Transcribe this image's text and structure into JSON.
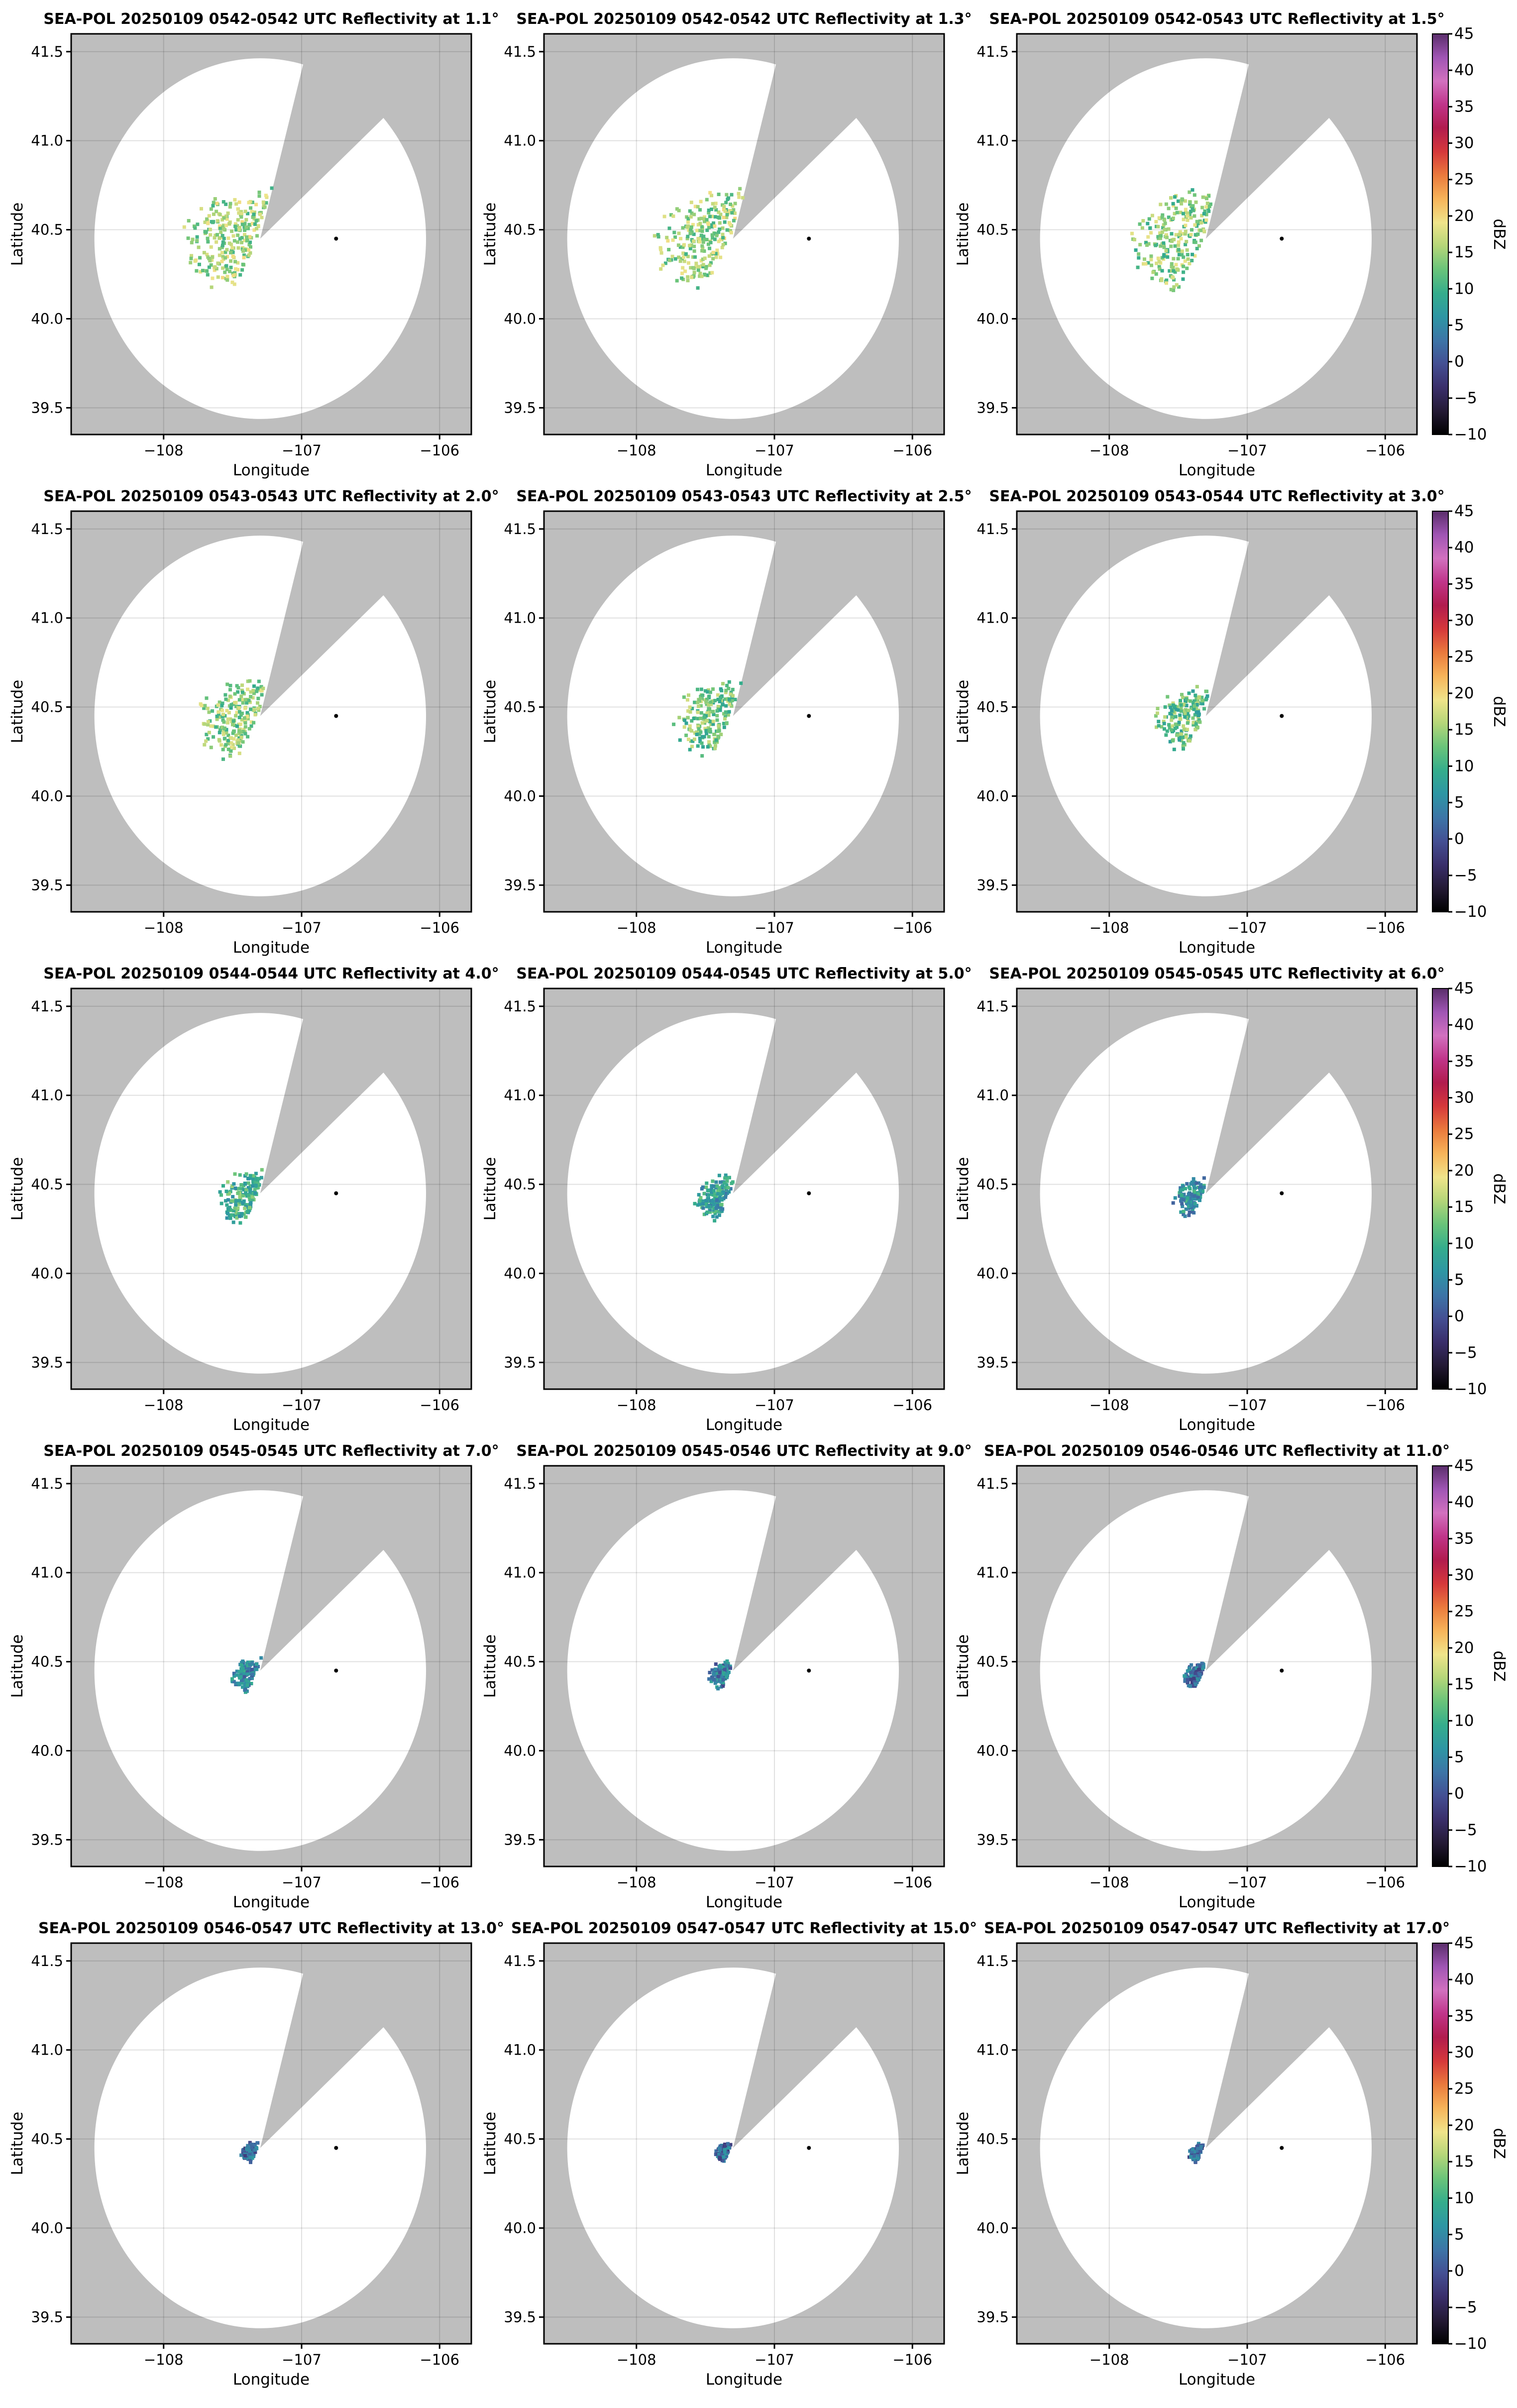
{
  "figure": {
    "product": "Reflectivity",
    "radar": "SEA-POL",
    "date": "20250109"
  },
  "colors": {
    "outside_range": "#bebebe",
    "inside_range": "#ffffff",
    "radar_marker": "#000000",
    "colormap": [
      "#000000",
      "#241a35",
      "#3a2f6b",
      "#444f93",
      "#3d75a7",
      "#2e96a4",
      "#35ad8c",
      "#6ac47a",
      "#b5d679",
      "#f0e48a",
      "#f7b45a",
      "#ea7a3d",
      "#d5383b",
      "#b11c4e",
      "#c0358a",
      "#d271bf",
      "#a055b4",
      "#5a2e6b"
    ]
  },
  "shared_axes": {
    "xlabel": "Longitude",
    "ylabel": "Latitude",
    "xlim": [
      -108.67,
      -105.77
    ],
    "ylim": [
      39.35,
      41.6
    ],
    "xticks": [
      -108,
      -107,
      -106
    ],
    "xtick_labels": [
      "−108",
      "−107",
      "−106"
    ],
    "yticks": [
      39.5,
      40.0,
      40.5,
      41.0,
      41.5
    ],
    "ytick_labels": [
      "39.5",
      "40.0",
      "40.5",
      "41.0",
      "41.5"
    ]
  },
  "colorbar": {
    "label": "dBZ",
    "range": [
      -10,
      45
    ],
    "ticks": [
      -10,
      -5,
      0,
      5,
      10,
      15,
      20,
      25,
      30,
      35,
      40,
      45
    ],
    "tick_labels": [
      "−10",
      "−5",
      "0",
      "5",
      "10",
      "15",
      "20",
      "25",
      "30",
      "35",
      "40",
      "45"
    ]
  },
  "chart_data": [
    {
      "type": "heatmap",
      "title": "SEA-POL 20250109 0542-0542 UTC Reflectivity at 1.1°",
      "elevation_deg": 1.1,
      "echo_extent_deg": 0.75,
      "echo_mean_dbz": 15,
      "xlabel": "Longitude",
      "ylabel": "Latitude"
    },
    {
      "type": "heatmap",
      "title": "SEA-POL 20250109 0542-0542 UTC Reflectivity at 1.3°",
      "elevation_deg": 1.3,
      "echo_extent_deg": 0.75,
      "echo_mean_dbz": 15,
      "xlabel": "Longitude",
      "ylabel": "Latitude"
    },
    {
      "type": "heatmap",
      "title": "SEA-POL 20250109 0542-0543 UTC Reflectivity at 1.5°",
      "elevation_deg": 1.5,
      "echo_extent_deg": 0.72,
      "echo_mean_dbz": 14,
      "xlabel": "Longitude",
      "ylabel": "Latitude",
      "colorbar": true
    },
    {
      "type": "heatmap",
      "title": "SEA-POL 20250109 0543-0543 UTC Reflectivity at 2.0°",
      "elevation_deg": 2.0,
      "echo_extent_deg": 0.6,
      "echo_mean_dbz": 14,
      "xlabel": "Longitude",
      "ylabel": "Latitude"
    },
    {
      "type": "heatmap",
      "title": "SEA-POL 20250109 0543-0543 UTC Reflectivity at 2.5°",
      "elevation_deg": 2.5,
      "echo_extent_deg": 0.55,
      "echo_mean_dbz": 13,
      "xlabel": "Longitude",
      "ylabel": "Latitude"
    },
    {
      "type": "heatmap",
      "title": "SEA-POL 20250109 0543-0544 UTC Reflectivity at 3.0°",
      "elevation_deg": 3.0,
      "echo_extent_deg": 0.48,
      "echo_mean_dbz": 12,
      "xlabel": "Longitude",
      "ylabel": "Latitude",
      "colorbar": true
    },
    {
      "type": "heatmap",
      "title": "SEA-POL 20250109 0544-0544 UTC Reflectivity at 4.0°",
      "elevation_deg": 4.0,
      "echo_extent_deg": 0.38,
      "echo_mean_dbz": 10,
      "xlabel": "Longitude",
      "ylabel": "Latitude"
    },
    {
      "type": "heatmap",
      "title": "SEA-POL 20250109 0544-0545 UTC Reflectivity at 5.0°",
      "elevation_deg": 5.0,
      "echo_extent_deg": 0.33,
      "echo_mean_dbz": 8,
      "xlabel": "Longitude",
      "ylabel": "Latitude"
    },
    {
      "type": "heatmap",
      "title": "SEA-POL 20250109 0545-0545 UTC Reflectivity at 6.0°",
      "elevation_deg": 6.0,
      "echo_extent_deg": 0.28,
      "echo_mean_dbz": 6,
      "xlabel": "Longitude",
      "ylabel": "Latitude",
      "colorbar": true
    },
    {
      "type": "heatmap",
      "title": "SEA-POL 20250109 0545-0545 UTC Reflectivity at 7.0°",
      "elevation_deg": 7.0,
      "echo_extent_deg": 0.24,
      "echo_mean_dbz": 5,
      "xlabel": "Longitude",
      "ylabel": "Latitude"
    },
    {
      "type": "heatmap",
      "title": "SEA-POL 20250109 0545-0546 UTC Reflectivity at 9.0°",
      "elevation_deg": 9.0,
      "echo_extent_deg": 0.2,
      "echo_mean_dbz": 4,
      "xlabel": "Longitude",
      "ylabel": "Latitude"
    },
    {
      "type": "heatmap",
      "title": "SEA-POL 20250109 0546-0546 UTC Reflectivity at 11.0°",
      "elevation_deg": 11.0,
      "echo_extent_deg": 0.18,
      "echo_mean_dbz": 3,
      "xlabel": "Longitude",
      "ylabel": "Latitude",
      "colorbar": true
    },
    {
      "type": "heatmap",
      "title": "SEA-POL 20250109 0546-0547 UTC Reflectivity at 13.0°",
      "elevation_deg": 13.0,
      "echo_extent_deg": 0.15,
      "echo_mean_dbz": 2,
      "xlabel": "Longitude",
      "ylabel": "Latitude"
    },
    {
      "type": "heatmap",
      "title": "SEA-POL 20250109 0547-0547 UTC Reflectivity at 15.0°",
      "elevation_deg": 15.0,
      "echo_extent_deg": 0.14,
      "echo_mean_dbz": 2,
      "xlabel": "Longitude",
      "ylabel": "Latitude"
    },
    {
      "type": "heatmap",
      "title": "SEA-POL 20250109 0547-0547 UTC Reflectivity at 17.0°",
      "elevation_deg": 17.0,
      "echo_extent_deg": 0.13,
      "echo_mean_dbz": 2,
      "xlabel": "Longitude",
      "ylabel": "Latitude",
      "colorbar": true
    }
  ]
}
